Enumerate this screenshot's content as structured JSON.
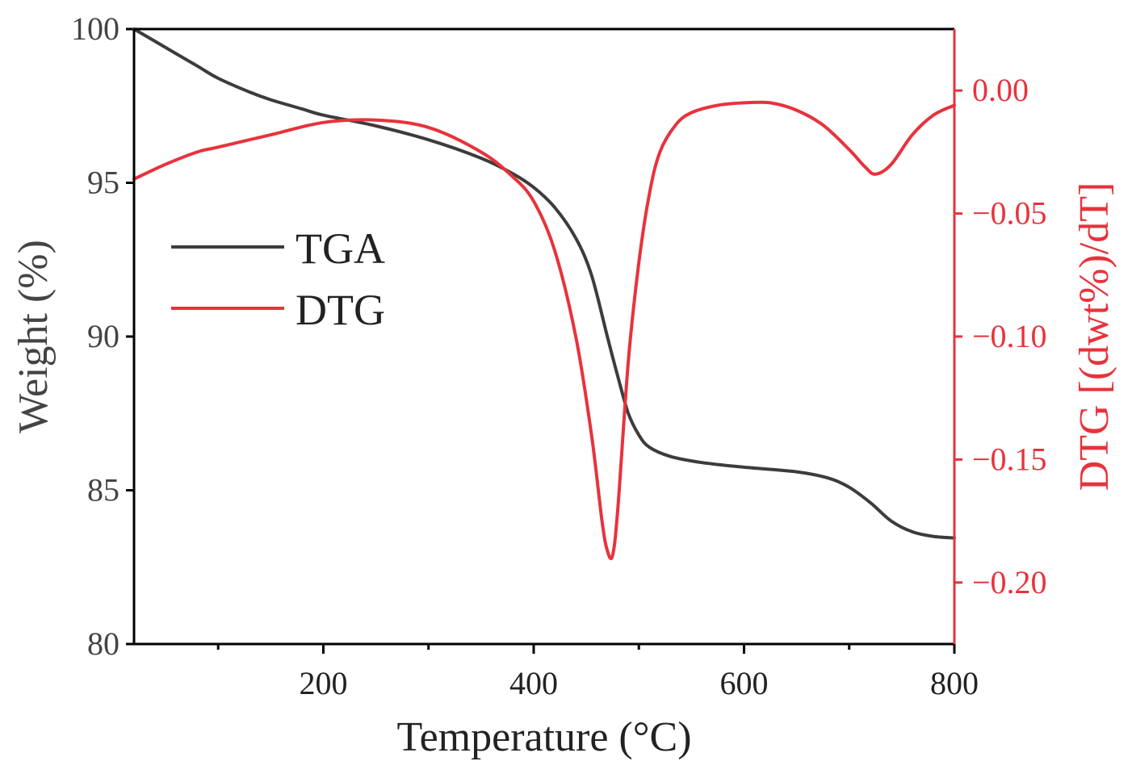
{
  "chart_data": {
    "type": "line",
    "title": "",
    "xlabel": "Temperature (°C)",
    "ylabel": "Weight (%)",
    "y2label": "DTG [(dwt%)/dT]",
    "xlim": [
      20,
      800
    ],
    "ylim": [
      80,
      100
    ],
    "y2lim": [
      -0.225,
      0.025
    ],
    "x_ticks": [
      {
        "value": 200,
        "label": "200"
      },
      {
        "value": 400,
        "label": "400"
      },
      {
        "value": 600,
        "label": "600"
      },
      {
        "value": 800,
        "label": "800"
      }
    ],
    "x_minor_ticks": [
      100,
      300,
      500,
      700
    ],
    "y_ticks": [
      {
        "value": 80,
        "label": "80"
      },
      {
        "value": 85,
        "label": "85"
      },
      {
        "value": 90,
        "label": "90"
      },
      {
        "value": 95,
        "label": "95"
      },
      {
        "value": 100,
        "label": "100"
      }
    ],
    "y2_ticks": [
      {
        "value": 0.0,
        "label": "0.00"
      },
      {
        "value": -0.05,
        "label": "−0.05"
      },
      {
        "value": -0.1,
        "label": "−0.10"
      },
      {
        "value": -0.15,
        "label": "−0.15"
      },
      {
        "value": -0.2,
        "label": "−0.20"
      }
    ],
    "legend_position": "left-middle",
    "series": [
      {
        "name": "TGA",
        "axis": "left",
        "color": "#3c3c3c",
        "points": [
          [
            20,
            100.0
          ],
          [
            50,
            99.4
          ],
          [
            80,
            98.8
          ],
          [
            100,
            98.4
          ],
          [
            130,
            97.95
          ],
          [
            150,
            97.7
          ],
          [
            180,
            97.4
          ],
          [
            200,
            97.2
          ],
          [
            250,
            96.85
          ],
          [
            300,
            96.4
          ],
          [
            350,
            95.8
          ],
          [
            380,
            95.3
          ],
          [
            400,
            94.85
          ],
          [
            420,
            94.2
          ],
          [
            440,
            93.2
          ],
          [
            455,
            92.0
          ],
          [
            470,
            90.0
          ],
          [
            480,
            88.7
          ],
          [
            490,
            87.5
          ],
          [
            500,
            86.8
          ],
          [
            510,
            86.4
          ],
          [
            530,
            86.1
          ],
          [
            560,
            85.9
          ],
          [
            600,
            85.75
          ],
          [
            650,
            85.6
          ],
          [
            680,
            85.4
          ],
          [
            700,
            85.1
          ],
          [
            720,
            84.6
          ],
          [
            740,
            84.0
          ],
          [
            760,
            83.65
          ],
          [
            780,
            83.5
          ],
          [
            800,
            83.45
          ]
        ]
      },
      {
        "name": "DTG",
        "axis": "right",
        "color": "#e8323c",
        "points": [
          [
            20,
            -0.036
          ],
          [
            50,
            -0.03
          ],
          [
            80,
            -0.025
          ],
          [
            100,
            -0.023
          ],
          [
            150,
            -0.018
          ],
          [
            200,
            -0.013
          ],
          [
            250,
            -0.012
          ],
          [
            300,
            -0.015
          ],
          [
            350,
            -0.025
          ],
          [
            380,
            -0.035
          ],
          [
            400,
            -0.045
          ],
          [
            420,
            -0.065
          ],
          [
            440,
            -0.1
          ],
          [
            455,
            -0.14
          ],
          [
            465,
            -0.175
          ],
          [
            470,
            -0.187
          ],
          [
            475,
            -0.189
          ],
          [
            480,
            -0.17
          ],
          [
            490,
            -0.11
          ],
          [
            500,
            -0.07
          ],
          [
            510,
            -0.042
          ],
          [
            520,
            -0.025
          ],
          [
            535,
            -0.014
          ],
          [
            550,
            -0.009
          ],
          [
            575,
            -0.006
          ],
          [
            600,
            -0.005
          ],
          [
            625,
            -0.005
          ],
          [
            650,
            -0.008
          ],
          [
            675,
            -0.014
          ],
          [
            700,
            -0.024
          ],
          [
            715,
            -0.031
          ],
          [
            725,
            -0.034
          ],
          [
            740,
            -0.03
          ],
          [
            760,
            -0.018
          ],
          [
            780,
            -0.01
          ],
          [
            800,
            -0.006
          ]
        ]
      }
    ]
  }
}
